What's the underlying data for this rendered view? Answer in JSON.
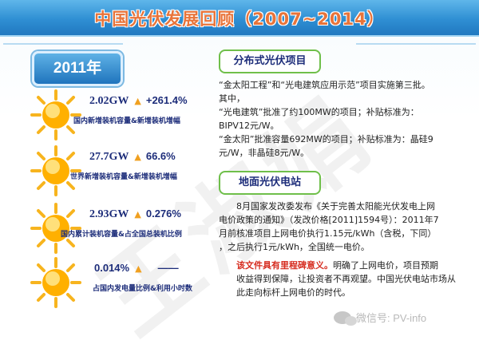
{
  "title": "中国光伏发展回顾（2007~2014）",
  "year": "2011年",
  "stats": [
    {
      "value": "2.02GW",
      "change": "+261.4%",
      "desc": "国内新增装机容量&新增装机增幅"
    },
    {
      "value": "27.7GW",
      "change": "66.6%",
      "desc": "世界新增装机容量&新增装机增幅"
    },
    {
      "value": "2.93GW",
      "change": "0.276%",
      "desc": "国内累计装机容量&占全国总装机比例"
    },
    {
      "value": "0.014%",
      "change": "——",
      "desc": "占国内发电量比例&利用小时数"
    }
  ],
  "section1": {
    "heading": "分布式光伏项目",
    "lines": [
      "“金太阳工程”和“光电建筑应用示范”项目实施第三批。",
      "其中，",
      "“光电建筑”批准了约100MW的项目；补贴标准为：",
      "BIPV12元/W。",
      "“金太阳”批准容量692MW的项目；补贴标准为：晶硅9",
      "元/W，非晶硅8元/W。"
    ]
  },
  "section2": {
    "heading": "地面光伏电站",
    "lines": [
      "8月国家发改委发布《关于完善太阳能光伏发电上网",
      "电价政策的通知》（发改价格[2011]1594号）：2011年7",
      "月前核准项目上网电价执行1.15元/kWh（含税，下同）",
      "，之后执行1元/kWh，全国统一电价。"
    ],
    "highlight": "该文件具有里程碑意义。",
    "after_highlight": "明确了上网电价，项目预期",
    "closing_lines": [
      "收益得到保障，让投资者不再观望。中国光伏电站市场从",
      "此走向标杆上网电价的时代。"
    ]
  },
  "watermark": "王淑娟",
  "wechat": "微信号: PV-info"
}
